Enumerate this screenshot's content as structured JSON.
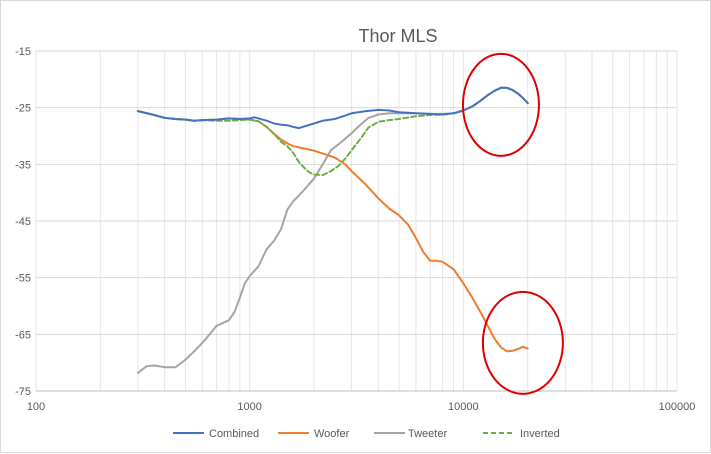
{
  "chart_data": {
    "type": "line",
    "title": "Thor MLS",
    "xlabel": "",
    "ylabel": "",
    "x_scale": "log",
    "xlim": [
      100,
      100000
    ],
    "ylim": [
      -75,
      -15
    ],
    "x_ticks": [
      100,
      1000,
      10000,
      100000
    ],
    "x_tick_labels": [
      "100",
      "1000",
      "10000",
      "100000"
    ],
    "y_ticks": [
      -15,
      -25,
      -35,
      -45,
      -55,
      -65,
      -75
    ],
    "y_tick_labels": [
      "-15",
      "-25",
      "-35",
      "-45",
      "-55",
      "-65",
      "-75"
    ],
    "grid": "major and minor vertical (log), major horizontal",
    "legend_position": "bottom",
    "series": [
      {
        "name": "Combined",
        "color": "#4472c4",
        "dash": "solid",
        "points": [
          [
            300,
            -25.6
          ],
          [
            350,
            -26.2
          ],
          [
            400,
            -26.8
          ],
          [
            450,
            -27.0
          ],
          [
            500,
            -27.1
          ],
          [
            550,
            -27.3
          ],
          [
            600,
            -27.2
          ],
          [
            700,
            -27.1
          ],
          [
            800,
            -26.9
          ],
          [
            900,
            -27.0
          ],
          [
            1000,
            -26.9
          ],
          [
            1050,
            -26.7
          ],
          [
            1100,
            -26.9
          ],
          [
            1200,
            -27.3
          ],
          [
            1300,
            -27.8
          ],
          [
            1400,
            -28.0
          ],
          [
            1500,
            -28.1
          ],
          [
            1600,
            -28.4
          ],
          [
            1700,
            -28.6
          ],
          [
            1800,
            -28.3
          ],
          [
            2000,
            -27.8
          ],
          [
            2200,
            -27.3
          ],
          [
            2500,
            -27.0
          ],
          [
            2800,
            -26.4
          ],
          [
            3000,
            -26.0
          ],
          [
            3500,
            -25.6
          ],
          [
            4000,
            -25.4
          ],
          [
            4500,
            -25.5
          ],
          [
            5000,
            -25.8
          ],
          [
            6000,
            -26.0
          ],
          [
            7000,
            -26.1
          ],
          [
            8000,
            -26.2
          ],
          [
            9000,
            -26.0
          ],
          [
            10000,
            -25.5
          ],
          [
            11000,
            -24.8
          ],
          [
            12000,
            -23.8
          ],
          [
            13000,
            -22.8
          ],
          [
            14000,
            -22.0
          ],
          [
            15000,
            -21.5
          ],
          [
            16000,
            -21.5
          ],
          [
            17000,
            -21.9
          ],
          [
            18000,
            -22.5
          ],
          [
            19000,
            -23.3
          ],
          [
            20000,
            -24.2
          ]
        ]
      },
      {
        "name": "Woofer",
        "color": "#ed7d31",
        "dash": "solid",
        "points": [
          [
            300,
            -25.6
          ],
          [
            350,
            -26.2
          ],
          [
            400,
            -26.8
          ],
          [
            450,
            -27.0
          ],
          [
            500,
            -27.1
          ],
          [
            550,
            -27.3
          ],
          [
            600,
            -27.2
          ],
          [
            700,
            -27.1
          ],
          [
            800,
            -26.9
          ],
          [
            900,
            -27.0
          ],
          [
            1000,
            -27.1
          ],
          [
            1100,
            -27.4
          ],
          [
            1200,
            -28.4
          ],
          [
            1300,
            -29.6
          ],
          [
            1400,
            -30.6
          ],
          [
            1500,
            -31.3
          ],
          [
            1600,
            -31.8
          ],
          [
            1800,
            -32.2
          ],
          [
            2000,
            -32.6
          ],
          [
            2200,
            -33.1
          ],
          [
            2500,
            -33.8
          ],
          [
            2800,
            -35.0
          ],
          [
            3000,
            -36.2
          ],
          [
            3500,
            -38.6
          ],
          [
            4000,
            -41.0
          ],
          [
            4500,
            -42.8
          ],
          [
            5000,
            -44.0
          ],
          [
            5500,
            -45.6
          ],
          [
            6000,
            -48.0
          ],
          [
            6500,
            -50.5
          ],
          [
            7000,
            -52.0
          ],
          [
            7500,
            -52.0
          ],
          [
            8000,
            -52.2
          ],
          [
            9000,
            -53.5
          ],
          [
            10000,
            -56.0
          ],
          [
            11000,
            -58.5
          ],
          [
            12000,
            -61.0
          ],
          [
            13000,
            -63.5
          ],
          [
            14000,
            -65.8
          ],
          [
            15000,
            -67.3
          ],
          [
            16000,
            -68.0
          ],
          [
            17000,
            -67.9
          ],
          [
            18000,
            -67.6
          ],
          [
            19000,
            -67.2
          ],
          [
            20000,
            -67.5
          ]
        ]
      },
      {
        "name": "Tweeter",
        "color": "#a5a5a5",
        "dash": "solid",
        "points": [
          [
            300,
            -71.8
          ],
          [
            330,
            -70.6
          ],
          [
            360,
            -70.5
          ],
          [
            400,
            -70.8
          ],
          [
            450,
            -70.8
          ],
          [
            500,
            -69.5
          ],
          [
            550,
            -68.0
          ],
          [
            600,
            -66.5
          ],
          [
            650,
            -65.0
          ],
          [
            700,
            -63.5
          ],
          [
            800,
            -62.5
          ],
          [
            850,
            -61.0
          ],
          [
            900,
            -58.5
          ],
          [
            950,
            -56.0
          ],
          [
            1000,
            -54.7
          ],
          [
            1100,
            -53.0
          ],
          [
            1200,
            -50.0
          ],
          [
            1300,
            -48.5
          ],
          [
            1400,
            -46.5
          ],
          [
            1500,
            -43.0
          ],
          [
            1600,
            -41.5
          ],
          [
            1700,
            -40.5
          ],
          [
            1800,
            -39.5
          ],
          [
            2000,
            -37.5
          ],
          [
            2200,
            -35.0
          ],
          [
            2400,
            -32.5
          ],
          [
            2600,
            -31.5
          ],
          [
            2800,
            -30.5
          ],
          [
            3000,
            -29.5
          ],
          [
            3300,
            -28.0
          ],
          [
            3600,
            -26.8
          ],
          [
            4000,
            -26.2
          ],
          [
            4500,
            -26.0
          ],
          [
            5000,
            -26.0
          ],
          [
            6000,
            -26.0
          ],
          [
            7000,
            -26.1
          ],
          [
            8000,
            -26.1
          ],
          [
            9000,
            -26.0
          ],
          [
            10000,
            -25.5
          ],
          [
            11000,
            -24.8
          ],
          [
            12000,
            -23.8
          ],
          [
            13000,
            -22.8
          ],
          [
            14000,
            -22.0
          ],
          [
            15000,
            -21.5
          ],
          [
            16000,
            -21.5
          ],
          [
            17000,
            -21.9
          ],
          [
            18000,
            -22.5
          ],
          [
            19000,
            -23.3
          ],
          [
            20000,
            -24.2
          ]
        ]
      },
      {
        "name": "Inverted",
        "color": "#70ad47",
        "dash": "dashed",
        "points": [
          [
            300,
            -25.6
          ],
          [
            350,
            -26.2
          ],
          [
            400,
            -26.8
          ],
          [
            450,
            -27.0
          ],
          [
            500,
            -27.1
          ],
          [
            550,
            -27.3
          ],
          [
            600,
            -27.2
          ],
          [
            700,
            -27.3
          ],
          [
            800,
            -27.3
          ],
          [
            900,
            -27.2
          ],
          [
            1000,
            -27.1
          ],
          [
            1100,
            -27.4
          ],
          [
            1200,
            -28.4
          ],
          [
            1300,
            -29.6
          ],
          [
            1400,
            -31.0
          ],
          [
            1500,
            -31.8
          ],
          [
            1600,
            -33.0
          ],
          [
            1700,
            -34.6
          ],
          [
            1800,
            -35.6
          ],
          [
            1900,
            -36.4
          ],
          [
            2000,
            -36.8
          ],
          [
            2200,
            -36.9
          ],
          [
            2400,
            -36.2
          ],
          [
            2600,
            -35.3
          ],
          [
            2800,
            -34.0
          ],
          [
            3000,
            -32.5
          ],
          [
            3300,
            -30.5
          ],
          [
            3600,
            -28.5
          ],
          [
            4000,
            -27.5
          ],
          [
            4500,
            -27.2
          ],
          [
            5000,
            -27.0
          ],
          [
            6000,
            -26.5
          ],
          [
            7000,
            -26.3
          ],
          [
            8000,
            -26.2
          ],
          [
            9000,
            -26.0
          ],
          [
            10000,
            -25.5
          ],
          [
            11000,
            -24.8
          ],
          [
            12000,
            -23.8
          ],
          [
            13000,
            -22.8
          ],
          [
            14000,
            -22.0
          ],
          [
            15000,
            -21.5
          ],
          [
            16000,
            -21.5
          ],
          [
            17000,
            -21.9
          ],
          [
            18000,
            -22.5
          ],
          [
            19000,
            -23.3
          ],
          [
            20000,
            -24.2
          ]
        ]
      }
    ],
    "annotations": [
      {
        "type": "ellipse",
        "color": "#e00000",
        "x_center": 15000,
        "y_center": -24.5
      },
      {
        "type": "ellipse",
        "color": "#e00000",
        "x_center": 19000,
        "y_center": -66.5
      }
    ]
  }
}
